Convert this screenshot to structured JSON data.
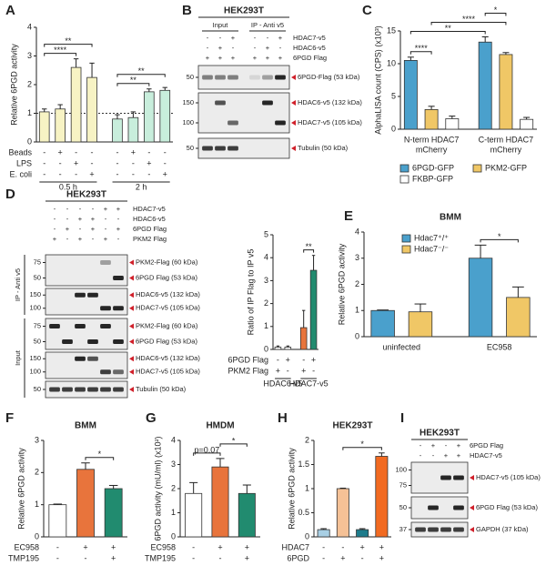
{
  "panels": [
    "A",
    "B",
    "C",
    "D",
    "E",
    "F",
    "G",
    "H",
    "I"
  ],
  "chart_data": [
    {
      "type": "bar",
      "ylabel": "Relative 6PGD activity",
      "ylim": [
        0,
        4
      ],
      "yticks": [
        0,
        1,
        2,
        3,
        4
      ],
      "values": [
        1.05,
        1.15,
        2.6,
        2.25,
        0.8,
        0.85,
        1.75,
        1.8
      ],
      "errors": [
        0.1,
        0.15,
        0.3,
        0.5,
        0.15,
        0.2,
        0.1,
        0.1
      ],
      "colors": [
        "#f7f3c4",
        "#f7f3c4",
        "#f7f3c4",
        "#f7f3c4",
        "#c8eedc",
        "#c8eedc",
        "#c8eedc",
        "#c8eedc"
      ],
      "refline": 1,
      "conditions": [
        {
          "name": "Beads",
          "signs": [
            "-",
            "+",
            "-",
            "-",
            "-",
            "+",
            "-",
            "-"
          ]
        },
        {
          "name": "LPS",
          "signs": [
            "-",
            "-",
            "+",
            "-",
            "-",
            "-",
            "+",
            "-"
          ]
        },
        {
          "name": "E. coli",
          "signs": [
            "-",
            "-",
            "-",
            "+",
            "-",
            "-",
            "-",
            "+"
          ]
        }
      ],
      "groups": [
        {
          "label": [
            "0.5 h"
          ],
          "span": [
            0,
            3
          ]
        },
        {
          "label": [
            "2 h"
          ],
          "span": [
            4,
            7
          ]
        }
      ],
      "annotations": [
        {
          "text": "****",
          "span": [
            0,
            2
          ]
        },
        {
          "text": "**",
          "span": [
            0,
            3
          ]
        },
        {
          "text": "**",
          "span": [
            4,
            6
          ]
        },
        {
          "text": "**",
          "span": [
            4,
            7
          ]
        }
      ]
    },
    {
      "type": "bar",
      "ylabel": "AlphaLISA count (CPS) (x10³)",
      "ylim": [
        0,
        15
      ],
      "yticks": [
        0,
        5,
        10,
        15
      ],
      "values": [
        10.5,
        3.0,
        1.6,
        13.3,
        11.4,
        1.5
      ],
      "errors": [
        0.5,
        0.5,
        0.4,
        0.8,
        0.3,
        0.3
      ],
      "colors": [
        "#4aa0cc",
        "#f0c766",
        "#ffffff",
        "#4aa0cc",
        "#f0c766",
        "#ffffff"
      ],
      "groups": [
        {
          "label": [
            "N-term HDAC7",
            "mCherry"
          ],
          "span": [
            0,
            2
          ]
        },
        {
          "label": [
            "C-term HDAC7",
            "mCherry"
          ],
          "span": [
            3,
            5
          ]
        }
      ],
      "legend": [
        {
          "name": "6PGD-GFP",
          "color": "#4aa0cc"
        },
        {
          "name": "PKM2-GFP",
          "color": "#f0c766"
        },
        {
          "name": "FKBP-GFP",
          "color": "#ffffff"
        }
      ],
      "annotations": [
        {
          "text": "****",
          "span": [
            0,
            1
          ]
        },
        {
          "text": "**",
          "span": [
            0,
            3
          ]
        },
        {
          "text": "****",
          "span": [
            1,
            4
          ]
        },
        {
          "text": "*",
          "span": [
            3,
            4
          ]
        }
      ]
    },
    {
      "type": "bar",
      "ylabel": "Ratio of IP Flag to IP v5",
      "ylim": [
        0,
        5
      ],
      "yticks": [
        0,
        1,
        2,
        3,
        4,
        5
      ],
      "values": [
        0.1,
        0.1,
        0.95,
        3.45
      ],
      "errors": [
        0.05,
        0.05,
        0.75,
        0.65
      ],
      "colors": [
        "#ffffff",
        "#ffffff",
        "#e8743c",
        "#218b6f"
      ],
      "conditions": [
        {
          "name": "6PGD Flag",
          "signs": [
            "-",
            "+",
            "-",
            "+"
          ]
        },
        {
          "name": "PKM2 Flag",
          "signs": [
            "+",
            "-",
            "+",
            "-"
          ]
        }
      ],
      "groups": [
        {
          "label": [
            "HDAC6-v5"
          ],
          "span": [
            0,
            1
          ]
        },
        {
          "label": [
            "HDAC7-v5"
          ],
          "span": [
            2,
            3
          ]
        }
      ],
      "annotations": [
        {
          "text": "**",
          "span": [
            2,
            3
          ]
        }
      ]
    },
    {
      "type": "bar",
      "title": "BMM",
      "ylabel": "Relative 6PGD activity",
      "ylim": [
        0,
        4
      ],
      "yticks": [
        0,
        1,
        2,
        3,
        4
      ],
      "values": [
        1.0,
        0.95,
        3.0,
        1.5
      ],
      "errors": [
        0.02,
        0.3,
        0.5,
        0.4
      ],
      "colors": [
        "#4aa0cc",
        "#f0c766",
        "#4aa0cc",
        "#f0c766"
      ],
      "groups": [
        {
          "label": [
            "uninfected"
          ],
          "span": [
            0,
            1
          ]
        },
        {
          "label": [
            "EC958"
          ],
          "span": [
            2,
            3
          ]
        }
      ],
      "legend": [
        {
          "name": "Hdac7⁺/⁺",
          "color": "#4aa0cc"
        },
        {
          "name": "Hdac7⁻/⁻",
          "color": "#f0c766"
        }
      ],
      "annotations": [
        {
          "text": "*",
          "span": [
            2,
            3
          ]
        }
      ]
    },
    {
      "type": "bar",
      "title": "BMM",
      "ylabel": "Relative 6PGD activity",
      "ylim": [
        0,
        3
      ],
      "yticks": [
        0,
        1,
        2,
        3
      ],
      "values": [
        1.0,
        2.1,
        1.5
      ],
      "errors": [
        0.02,
        0.2,
        0.1
      ],
      "colors": [
        "#ffffff",
        "#e8743c",
        "#218b6f"
      ],
      "conditions": [
        {
          "name": "EC958",
          "signs": [
            "-",
            "+",
            "+"
          ]
        },
        {
          "name": "TMP195",
          "signs": [
            "-",
            "-",
            "+"
          ]
        }
      ],
      "annotations": [
        {
          "text": "*",
          "span": [
            1,
            2
          ]
        }
      ]
    },
    {
      "type": "bar",
      "title": "HMDM",
      "ylabel": "6PGD activity (mU/ml) (x10²)",
      "ylim": [
        0,
        4
      ],
      "yticks": [
        0,
        1,
        2,
        3,
        4
      ],
      "values": [
        1.8,
        2.9,
        1.8
      ],
      "errors": [
        0.45,
        0.35,
        0.35
      ],
      "colors": [
        "#ffffff",
        "#e8743c",
        "#218b6f"
      ],
      "conditions": [
        {
          "name": "EC958",
          "signs": [
            "-",
            "+",
            "+"
          ]
        },
        {
          "name": "TMP195",
          "signs": [
            "-",
            "-",
            "+"
          ]
        }
      ],
      "annotations": [
        {
          "text": "p=0.07",
          "span": [
            0,
            1
          ]
        },
        {
          "text": "*",
          "span": [
            1,
            2
          ]
        }
      ]
    },
    {
      "type": "bar",
      "title": "HEK293T",
      "ylabel": "Relative 6PGD activity",
      "ylim": [
        0,
        2
      ],
      "yticks": [
        0,
        0.5,
        1,
        1.5,
        2
      ],
      "values": [
        0.15,
        1.0,
        0.15,
        1.67
      ],
      "errors": [
        0.02,
        0.01,
        0.02,
        0.07
      ],
      "colors": [
        "#a8cfe4",
        "#f5c196",
        "#1e7c8c",
        "#f26a21"
      ],
      "conditions": [
        {
          "name": "HDAC7",
          "signs": [
            "-",
            "-",
            "+",
            "+"
          ]
        },
        {
          "name": "6PGD",
          "signs": [
            "-",
            "+",
            "-",
            "+"
          ]
        }
      ],
      "annotations": [
        {
          "text": "*",
          "span": [
            1,
            3
          ]
        }
      ]
    }
  ],
  "blots": [
    {
      "title": "HEK293T",
      "headers": [
        {
          "text": "Input",
          "lanes": [
            0,
            2
          ]
        },
        {
          "text": "IP - Anti v5",
          "lanes": [
            3,
            5
          ]
        }
      ],
      "conditions": [
        {
          "name": "HDAC7-v5",
          "signs": [
            "-",
            "-",
            "+",
            "-",
            "-",
            "+"
          ]
        },
        {
          "name": "HDAC6-v5",
          "signs": [
            "-",
            "+",
            "-",
            "-",
            "+",
            "-"
          ]
        },
        {
          "name": "6PGD Flag",
          "signs": [
            "+",
            "+",
            "+",
            "+",
            "+",
            "+"
          ]
        }
      ],
      "strips": [
        {
          "markers": [
            50
          ],
          "labels": [
            "6PGD-Flag (53 kDa)"
          ]
        },
        {
          "markers": [
            150,
            100
          ],
          "labels": [
            "HDAC6-v5 (132 kDa)",
            "HDAC7-v5 (105 kDa)"
          ]
        },
        {
          "markers": [
            50
          ],
          "labels": [
            "Tubulin (50 kDa)"
          ]
        }
      ]
    },
    {
      "title": "HEK293T",
      "conditions": [
        {
          "name": "HDAC7-v5",
          "signs": [
            "-",
            "-",
            "-",
            "-",
            "+",
            "+"
          ]
        },
        {
          "name": "HDAC6-v5",
          "signs": [
            "-",
            "-",
            "+",
            "+",
            "-",
            "-"
          ]
        },
        {
          "name": "6PGD Flag",
          "signs": [
            "-",
            "+",
            "-",
            "+",
            "-",
            "+"
          ]
        },
        {
          "name": "PKM2 Flag",
          "signs": [
            "+",
            "-",
            "+",
            "-",
            "+",
            "-"
          ]
        }
      ],
      "sides": [
        {
          "text": "IP - Anti v5",
          "strips": [
            0,
            1
          ]
        },
        {
          "text": "Input",
          "strips": [
            2,
            4
          ]
        }
      ],
      "strips": [
        {
          "markers": [
            75,
            50
          ],
          "labels": [
            "PKM2-Flag (60 kDa)",
            "6PGD Flag (53 kDa)"
          ]
        },
        {
          "markers": [
            150,
            100
          ],
          "labels": [
            "HDAC6-v5 (132 kDa)",
            "HDAC7-v5 (105 kDa)"
          ]
        },
        {
          "markers": [
            75,
            50
          ],
          "labels": [
            "PKM2-Flag (60 kDa)",
            "6PGD Flag (53 kDa)"
          ]
        },
        {
          "markers": [
            150,
            100
          ],
          "labels": [
            "HDAC6-v5 (132 kDa)",
            "HDAC7-v5 (105 kDa)"
          ]
        },
        {
          "markers": [
            50
          ],
          "labels": [
            "Tubulin (50 kDa)"
          ]
        }
      ]
    },
    {
      "title": "HEK293T",
      "conditions": [
        {
          "name": "6PGD Flag",
          "signs": [
            "-",
            "+",
            "-",
            "+"
          ]
        },
        {
          "name": "HDAC7-v5",
          "signs": [
            "-",
            "-",
            "+",
            "+"
          ]
        }
      ],
      "strips": [
        {
          "markers": [
            100,
            75
          ],
          "labels": [
            "HDAC7-v5 (105 kDa)"
          ]
        },
        {
          "markers": [
            50
          ],
          "labels": [
            "6PGD Flag (53 kDa)"
          ]
        },
        {
          "markers": [
            37
          ],
          "labels": [
            "GAPDH (37 kDa)"
          ]
        }
      ]
    }
  ]
}
